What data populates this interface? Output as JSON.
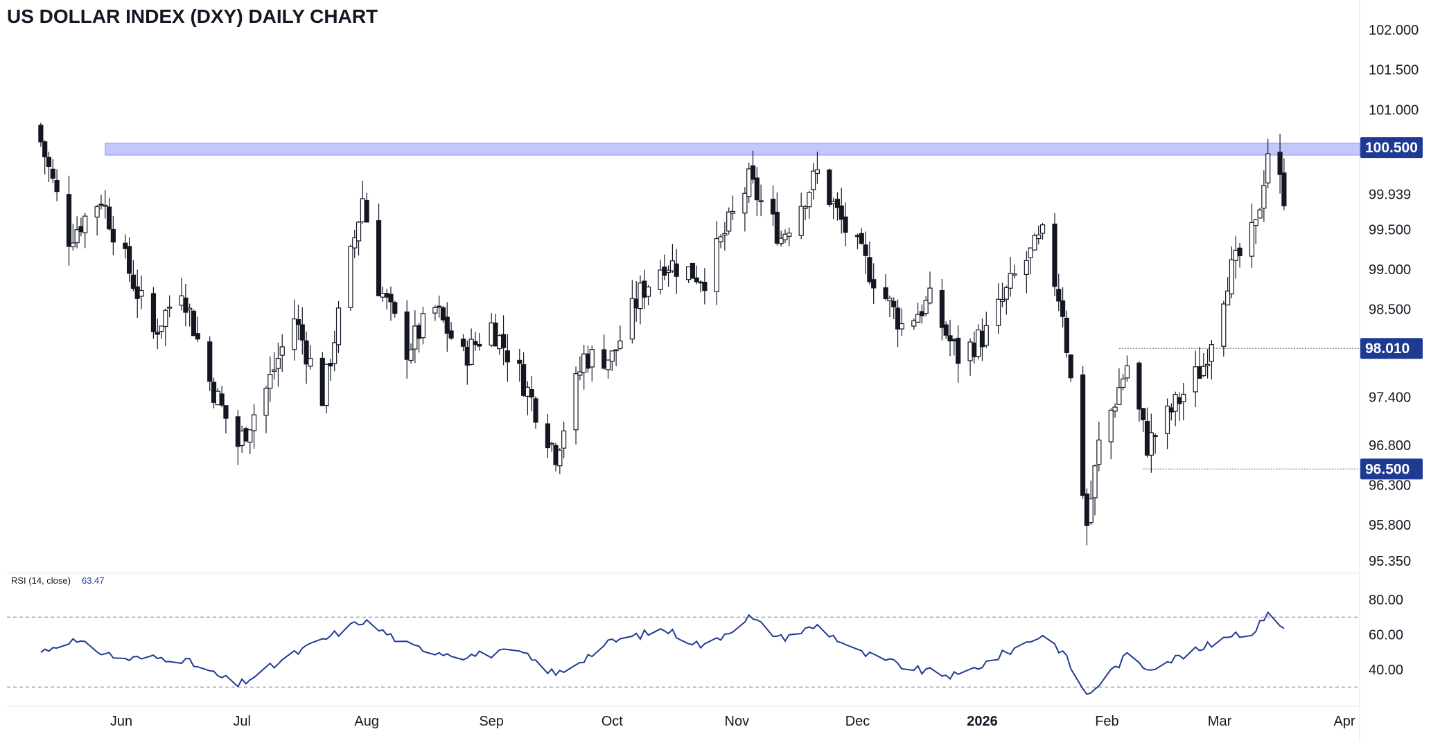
{
  "title": "US DOLLAR INDEX (DXY) DAILY CHART",
  "colors": {
    "accent": "#1f3a93",
    "resistance_zone": "#5a5ef0",
    "up_candle": "#ffffff",
    "down_candle": "#131722",
    "rsi_line": "#1f3a93"
  },
  "chart_data": [
    {
      "type": "candlestick",
      "title": "US DOLLAR INDEX (DXY) DAILY CHART",
      "y_ticks": [
        "102.000",
        "101.500",
        "101.000",
        "99.500",
        "99.000",
        "98.500",
        "97.400",
        "96.800",
        "96.300",
        "95.800",
        "95.350"
      ],
      "ylim": [
        95.2,
        102.3
      ],
      "x_ticks": [
        "Jun",
        "Jul",
        "Aug",
        "Sep",
        "Oct",
        "Nov",
        "Dec",
        "2026",
        "Feb",
        "Mar",
        "Apr"
      ],
      "annotations": {
        "resistance_zone": {
          "low": 100.43,
          "high": 100.58,
          "label": "100.500"
        },
        "support_levels": [
          {
            "value": 98.01,
            "label": "98.010"
          },
          {
            "value": 96.5,
            "label": "96.500"
          }
        ],
        "last_price": {
          "value": 99.939,
          "label": "99.939"
        }
      },
      "close_path": [
        [
          "2025-05-12",
          100.6
        ],
        [
          "2025-05-19",
          99.4
        ],
        [
          "2025-05-27",
          99.9
        ],
        [
          "2025-06-02",
          99.1
        ],
        [
          "2025-06-09",
          98.2
        ],
        [
          "2025-06-16",
          98.8
        ],
        [
          "2025-06-23",
          97.6
        ],
        [
          "2025-06-30",
          96.8
        ],
        [
          "2025-07-07",
          97.5
        ],
        [
          "2025-07-14",
          98.4
        ],
        [
          "2025-07-21",
          97.4
        ],
        [
          "2025-07-31",
          99.9
        ],
        [
          "2025-08-04",
          98.8
        ],
        [
          "2025-08-11",
          98.0
        ],
        [
          "2025-08-18",
          98.5
        ],
        [
          "2025-08-25",
          97.9
        ],
        [
          "2025-09-01",
          98.3
        ],
        [
          "2025-09-08",
          97.7
        ],
        [
          "2025-09-17",
          96.7
        ],
        [
          "2025-09-24",
          97.9
        ],
        [
          "2025-10-01",
          97.9
        ],
        [
          "2025-10-08",
          98.7
        ],
        [
          "2025-10-14",
          99.1
        ],
        [
          "2025-10-24",
          98.9
        ],
        [
          "2025-11-04",
          100.1
        ],
        [
          "2025-11-12",
          99.4
        ],
        [
          "2025-11-21",
          100.2
        ],
        [
          "2025-11-28",
          99.5
        ],
        [
          "2025-12-05",
          98.9
        ],
        [
          "2025-12-12",
          98.3
        ],
        [
          "2025-12-19",
          98.6
        ],
        [
          "2025-12-26",
          97.9
        ],
        [
          "2026-01-02",
          98.2
        ],
        [
          "2026-01-09",
          98.9
        ],
        [
          "2026-01-16",
          99.4
        ],
        [
          "2026-01-21",
          98.5
        ],
        [
          "2026-01-27",
          95.8
        ],
        [
          "2026-01-30",
          96.8
        ],
        [
          "2026-02-06",
          97.8
        ],
        [
          "2026-02-11",
          96.8
        ],
        [
          "2026-02-18",
          97.3
        ],
        [
          "2026-02-25",
          97.8
        ],
        [
          "2026-03-03",
          98.9
        ],
        [
          "2026-03-10",
          99.5
        ],
        [
          "2026-03-13",
          100.5
        ],
        [
          "2026-03-17",
          99.939
        ]
      ]
    },
    {
      "type": "line",
      "title": "",
      "series": [
        {
          "name": "RSI (14, close)",
          "last": 63.47
        }
      ],
      "y_ticks": [
        "80.00",
        "60.00",
        "40.00"
      ],
      "ylim": [
        19,
        85
      ],
      "bands": [
        70,
        30
      ],
      "path": [
        [
          "2025-05-12",
          50
        ],
        [
          "2025-05-19",
          57
        ],
        [
          "2025-06-01",
          46
        ],
        [
          "2025-06-15",
          47
        ],
        [
          "2025-06-30",
          31
        ],
        [
          "2025-07-15",
          50
        ],
        [
          "2025-07-31",
          68
        ],
        [
          "2025-08-12",
          53
        ],
        [
          "2025-08-25",
          48
        ],
        [
          "2025-09-08",
          50
        ],
        [
          "2025-09-17",
          37
        ],
        [
          "2025-10-01",
          56
        ],
        [
          "2025-10-14",
          63
        ],
        [
          "2025-10-24",
          53
        ],
        [
          "2025-11-04",
          70
        ],
        [
          "2025-11-12",
          58
        ],
        [
          "2025-11-21",
          65
        ],
        [
          "2025-12-01",
          50
        ],
        [
          "2025-12-15",
          40
        ],
        [
          "2025-12-26",
          36
        ],
        [
          "2026-01-09",
          52
        ],
        [
          "2026-01-16",
          60
        ],
        [
          "2026-01-21",
          50
        ],
        [
          "2026-01-27",
          25
        ],
        [
          "2026-02-06",
          48
        ],
        [
          "2026-02-11",
          41
        ],
        [
          "2026-02-25",
          52
        ],
        [
          "2026-03-03",
          60
        ],
        [
          "2026-03-10",
          62
        ],
        [
          "2026-03-13",
          74
        ],
        [
          "2026-03-17",
          63.47
        ]
      ]
    }
  ]
}
